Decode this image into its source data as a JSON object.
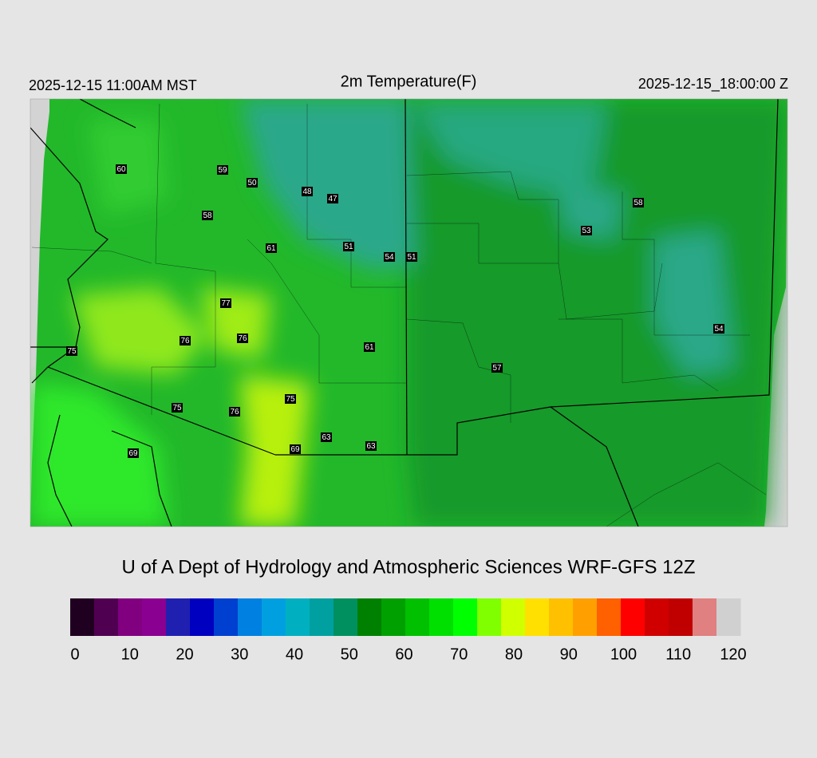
{
  "header": {
    "left": "2025-12-15 11:00AM MST",
    "title": "2m Temperature(F)",
    "right": "2025-12-15_18:00:00 Z"
  },
  "stations": [
    60,
    59,
    50,
    48,
    47,
    58,
    61,
    51,
    54,
    51,
    77,
    76,
    76,
    61,
    75,
    57,
    75,
    75,
    76,
    63,
    69,
    63,
    69,
    58,
    53,
    54
  ],
  "footer": "U of A Dept of Hydrology and Atmospheric Sciences WRF-GFS 12Z",
  "colorbar": {
    "range": [
      0,
      120
    ],
    "ticks": [
      0,
      10,
      20,
      30,
      40,
      50,
      60,
      70,
      80,
      90,
      100,
      110,
      120
    ],
    "colors": [
      "#200020",
      "#500050",
      "#800080",
      "#8a0090",
      "#2020b0",
      "#0000c0",
      "#0040d0",
      "#0080e0",
      "#00a0e0",
      "#00b0c0",
      "#00a0a0",
      "#009060",
      "#008000",
      "#00a000",
      "#00c000",
      "#00e000",
      "#00ff00",
      "#80ff00",
      "#d0ff00",
      "#ffe000",
      "#ffc000",
      "#ffa000",
      "#ff6000",
      "#ff0000",
      "#d00000",
      "#c00000",
      "#e08080",
      "#d0d0d0"
    ]
  }
}
